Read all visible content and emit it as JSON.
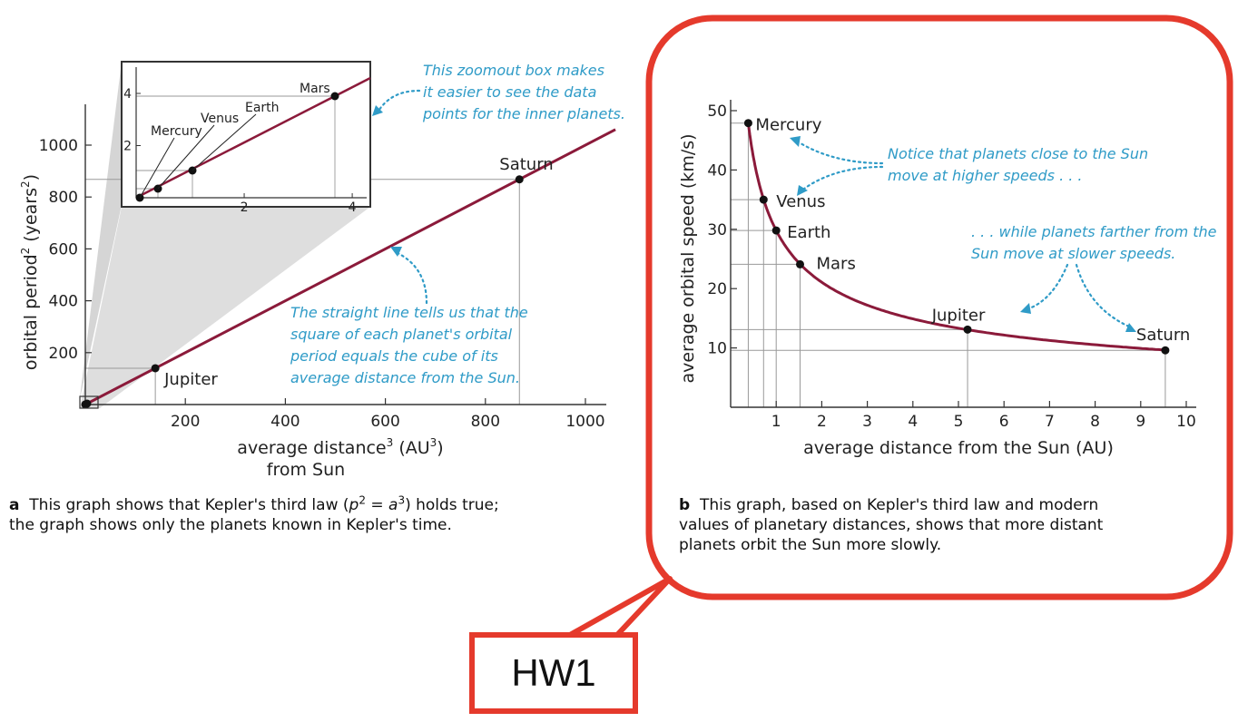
{
  "colors": {
    "curve": "#8b1a3a",
    "annotation": "#2f9bc7",
    "callout": "#e53a2c",
    "axis": "#333333",
    "guide": "#999999"
  },
  "chart_data": [
    {
      "id": "a",
      "type": "scatter",
      "xlabel_line1": "average distance",
      "xlabel_sup": "3",
      "xlabel_unit_pre": " (AU",
      "xlabel_unit_sup": "3",
      "xlabel_unit_post": ")",
      "xlabel_line2": "from Sun",
      "ylabel_pre": "orbital period",
      "ylabel_sup": "2",
      "ylabel_unit_pre": " (years",
      "ylabel_unit_sup": "2",
      "ylabel_unit_post": ")",
      "xlim": [
        0,
        1000
      ],
      "ylim": [
        0,
        1000
      ],
      "x_ticks": [
        200,
        400,
        600,
        800,
        1000
      ],
      "y_ticks": [
        200,
        400,
        600,
        800,
        1000
      ],
      "fit_line": {
        "x": [
          0,
          1060
        ],
        "y": [
          0,
          1060
        ]
      },
      "points": [
        {
          "name": "Mercury",
          "x": 0.058,
          "y": 0.058
        },
        {
          "name": "Venus",
          "x": 0.37,
          "y": 0.37
        },
        {
          "name": "Earth",
          "x": 1,
          "y": 1
        },
        {
          "name": "Mars",
          "x": 3.5,
          "y": 3.5
        },
        {
          "name": "Jupiter",
          "x": 140,
          "y": 140
        },
        {
          "name": "Saturn",
          "x": 868,
          "y": 868
        }
      ],
      "inset": {
        "xlim": [
          0,
          4.2
        ],
        "ylim": [
          0,
          4.8
        ],
        "x_ticks": [
          2,
          4
        ],
        "y_ticks": [
          2,
          4
        ],
        "labels": [
          "Mercury",
          "Venus",
          "Earth",
          "Mars"
        ]
      },
      "annotations": {
        "inset_note": [
          "This zoomout box makes",
          "it easier to see the data",
          "points for the inner planets."
        ],
        "line_note": [
          "The straight line tells us that the",
          "square of each planet's orbital",
          "period equals the cube of its",
          "average distance from the Sun."
        ]
      }
    },
    {
      "id": "b",
      "type": "line",
      "xlabel": "average distance from the Sun (AU)",
      "ylabel": "average orbital speed (km/s)",
      "xlim": [
        0,
        10
      ],
      "ylim": [
        0,
        50
      ],
      "x_ticks": [
        1,
        2,
        3,
        4,
        5,
        6,
        7,
        8,
        9,
        10
      ],
      "y_ticks": [
        10,
        20,
        30,
        40,
        50
      ],
      "points": [
        {
          "name": "Mercury",
          "x": 0.387,
          "y": 47.9
        },
        {
          "name": "Venus",
          "x": 0.723,
          "y": 35.0
        },
        {
          "name": "Earth",
          "x": 1.0,
          "y": 29.8
        },
        {
          "name": "Mars",
          "x": 1.524,
          "y": 24.1
        },
        {
          "name": "Jupiter",
          "x": 5.2,
          "y": 13.1
        },
        {
          "name": "Saturn",
          "x": 9.54,
          "y": 9.6
        }
      ],
      "annotations": {
        "fast_note": [
          "Notice that planets close to the Sun",
          "move at higher speeds . . ."
        ],
        "slow_note": [
          ". . . while planets farther from the",
          "Sun move at slower speeds."
        ]
      }
    }
  ],
  "caption_a": {
    "letter": "a",
    "line1_pre": "This graph shows that Kepler's third law (",
    "p": "p",
    "eq": " = ",
    "a": "a",
    "exp": "2",
    "exp2": "3",
    "line1_post": ") holds true;",
    "line2": "the graph shows only the planets known in Kepler's time."
  },
  "caption_b": {
    "letter": "b",
    "line1": "This graph, based on Kepler's third law and modern",
    "line2": "values of planetary distances, shows that more distant",
    "line3": "planets orbit the Sun more slowly."
  },
  "callout_label": "HW1"
}
